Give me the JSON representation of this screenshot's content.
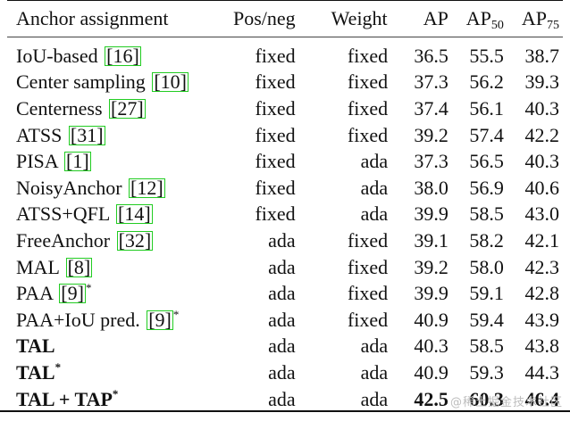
{
  "table": {
    "headers": {
      "anchor": "Anchor assignment",
      "posneg": "Pos/neg",
      "weight": "Weight",
      "ap": "AP",
      "ap50_base": "AP",
      "ap50_sub": "50",
      "ap75_base": "AP",
      "ap75_sub": "75"
    },
    "rows": [
      {
        "name": "IoU-based",
        "ref": "16",
        "star": "",
        "posneg": "fixed",
        "weight": "fixed",
        "ap": "36.5",
        "ap50": "55.5",
        "ap75": "38.7"
      },
      {
        "name": "Center sampling",
        "ref": "10",
        "star": "",
        "posneg": "fixed",
        "weight": "fixed",
        "ap": "37.3",
        "ap50": "56.2",
        "ap75": "39.3"
      },
      {
        "name": "Centerness",
        "ref": "27",
        "star": "",
        "posneg": "fixed",
        "weight": "fixed",
        "ap": "37.4",
        "ap50": "56.1",
        "ap75": "40.3"
      },
      {
        "name": "ATSS",
        "ref": "31",
        "star": "",
        "posneg": "fixed",
        "weight": "fixed",
        "ap": "39.2",
        "ap50": "57.4",
        "ap75": "42.2"
      },
      {
        "name": "PISA",
        "ref": "1",
        "star": "",
        "posneg": "fixed",
        "weight": "ada",
        "ap": "37.3",
        "ap50": "56.5",
        "ap75": "40.3"
      },
      {
        "name": "NoisyAnchor",
        "ref": "12",
        "star": "",
        "posneg": "fixed",
        "weight": "ada",
        "ap": "38.0",
        "ap50": "56.9",
        "ap75": "40.6"
      },
      {
        "name": "ATSS+QFL",
        "ref": "14",
        "star": "",
        "posneg": "fixed",
        "weight": "ada",
        "ap": "39.9",
        "ap50": "58.5",
        "ap75": "43.0"
      },
      {
        "name": "FreeAnchor",
        "ref": "32",
        "star": "",
        "posneg": "ada",
        "weight": "fixed",
        "ap": "39.1",
        "ap50": "58.2",
        "ap75": "42.1"
      },
      {
        "name": "MAL",
        "ref": "8",
        "star": "",
        "posneg": "ada",
        "weight": "fixed",
        "ap": "39.2",
        "ap50": "58.0",
        "ap75": "42.3"
      },
      {
        "name": "PAA",
        "ref": "9",
        "star": "*",
        "posneg": "ada",
        "weight": "fixed",
        "ap": "39.9",
        "ap50": "59.1",
        "ap75": "42.8"
      },
      {
        "name": "PAA+IoU pred.",
        "ref": "9",
        "star": "*",
        "posneg": "ada",
        "weight": "fixed",
        "ap": "40.9",
        "ap50": "59.4",
        "ap75": "43.9"
      },
      {
        "name": "TAL",
        "ref": "",
        "star": "",
        "posneg": "ada",
        "weight": "ada",
        "ap": "40.3",
        "ap50": "58.5",
        "ap75": "43.8"
      },
      {
        "name": "TAL",
        "ref": "",
        "star": "*",
        "posneg": "ada",
        "weight": "ada",
        "ap": "40.9",
        "ap50": "59.3",
        "ap75": "44.3"
      },
      {
        "name": "TAL + TAP",
        "ref": "",
        "star": "*",
        "posneg": "ada",
        "weight": "ada",
        "ap": "42.5",
        "ap50": "60.3",
        "ap75": "46.4"
      }
    ]
  },
  "watermark": "@稀土掘金技术社区"
}
